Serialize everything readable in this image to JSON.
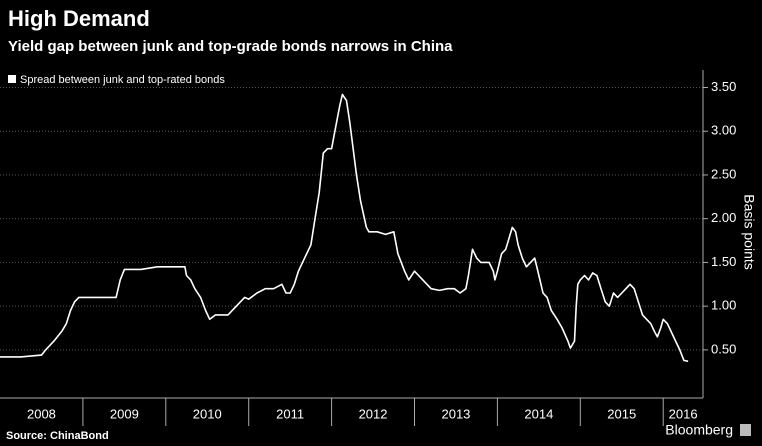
{
  "chart_data": {
    "type": "line",
    "title": "High Demand",
    "subtitle": "Yield gap between junk and top-grade bonds narrows in China",
    "y_label": "Basis points",
    "source": "Source: ChinaBond",
    "brand": "Bloomberg",
    "grid": true,
    "legend": "top-left",
    "xlim": [
      2008,
      2016.48
    ],
    "ylim": [
      -0.05,
      3.7
    ],
    "yticks": [
      {
        "value": 0.5,
        "label": "0.50"
      },
      {
        "value": 1.0,
        "label": "1.00"
      },
      {
        "value": 1.5,
        "label": "1.50"
      },
      {
        "value": 2.0,
        "label": "2.00"
      },
      {
        "value": 2.5,
        "label": "2.50"
      },
      {
        "value": 3.0,
        "label": "3.00"
      },
      {
        "value": 3.5,
        "label": "3.50"
      }
    ],
    "xticks": [
      {
        "value": 2008.5,
        "label": "2008"
      },
      {
        "value": 2009.5,
        "label": "2009"
      },
      {
        "value": 2010.5,
        "label": "2010"
      },
      {
        "value": 2011.5,
        "label": "2011"
      },
      {
        "value": 2012.5,
        "label": "2012"
      },
      {
        "value": 2013.5,
        "label": "2013"
      },
      {
        "value": 2014.5,
        "label": "2014"
      },
      {
        "value": 2015.5,
        "label": "2015"
      },
      {
        "value": 2016.24,
        "label": "2016"
      }
    ],
    "xminor_ticks": [
      2009,
      2010,
      2011,
      2012,
      2013,
      2014,
      2015,
      2016
    ],
    "x": [
      2008.0,
      2008.25,
      2008.5,
      2008.55,
      2008.65,
      2008.75,
      2008.8,
      2008.85,
      2008.9,
      2008.95,
      2009.0,
      2009.3,
      2009.4,
      2009.45,
      2009.5,
      2009.7,
      2009.9,
      2010.0,
      2010.23,
      2010.25,
      2010.3,
      2010.35,
      2010.42,
      2010.48,
      2010.53,
      2010.6,
      2010.75,
      2010.85,
      2010.95,
      2011.0,
      2011.1,
      2011.2,
      2011.3,
      2011.4,
      2011.45,
      2011.5,
      2011.55,
      2011.6,
      2011.7,
      2011.75,
      2011.8,
      2011.85,
      2011.9,
      2011.95,
      2012.0,
      2012.05,
      2012.1,
      2012.13,
      2012.18,
      2012.22,
      2012.3,
      2012.35,
      2012.42,
      2012.45,
      2012.55,
      2012.65,
      2012.75,
      2012.8,
      2012.88,
      2012.93,
      2013.0,
      2013.05,
      2013.1,
      2013.2,
      2013.3,
      2013.4,
      2013.48,
      2013.55,
      2013.62,
      2013.65,
      2013.7,
      2013.75,
      2013.8,
      2013.9,
      2013.95,
      2013.97,
      2014.0,
      2014.05,
      2014.1,
      2014.18,
      2014.22,
      2014.25,
      2014.3,
      2014.35,
      2014.4,
      2014.45,
      2014.5,
      2014.55,
      2014.6,
      2014.65,
      2014.72,
      2014.78,
      2014.85,
      2014.88,
      2014.93,
      2014.95,
      2014.97,
      2015.0,
      2015.05,
      2015.1,
      2015.15,
      2015.2,
      2015.25,
      2015.3,
      2015.35,
      2015.4,
      2015.45,
      2015.5,
      2015.55,
      2015.6,
      2015.65,
      2015.7,
      2015.75,
      2015.8,
      2015.85,
      2015.9,
      2015.93,
      2015.97,
      2016.0,
      2016.05,
      2016.1,
      2016.15,
      2016.2,
      2016.25,
      2016.3
    ],
    "series": [
      {
        "name": "Spread between junk and top-rated bonds",
        "color": "#ffffff",
        "values": [
          0.42,
          0.42,
          0.44,
          0.5,
          0.6,
          0.72,
          0.8,
          0.95,
          1.05,
          1.1,
          1.1,
          1.1,
          1.1,
          1.3,
          1.42,
          1.42,
          1.45,
          1.45,
          1.45,
          1.35,
          1.3,
          1.2,
          1.1,
          0.95,
          0.85,
          0.9,
          0.9,
          1.0,
          1.1,
          1.08,
          1.15,
          1.2,
          1.2,
          1.25,
          1.15,
          1.15,
          1.25,
          1.4,
          1.6,
          1.7,
          2.0,
          2.3,
          2.75,
          2.8,
          2.8,
          3.05,
          3.3,
          3.42,
          3.35,
          3.1,
          2.5,
          2.2,
          1.9,
          1.85,
          1.85,
          1.82,
          1.85,
          1.6,
          1.4,
          1.3,
          1.4,
          1.35,
          1.3,
          1.2,
          1.18,
          1.2,
          1.2,
          1.15,
          1.2,
          1.35,
          1.65,
          1.55,
          1.5,
          1.5,
          1.4,
          1.3,
          1.4,
          1.6,
          1.65,
          1.9,
          1.85,
          1.7,
          1.55,
          1.45,
          1.5,
          1.55,
          1.35,
          1.15,
          1.1,
          0.95,
          0.85,
          0.75,
          0.6,
          0.52,
          0.6,
          1.0,
          1.25,
          1.3,
          1.35,
          1.3,
          1.38,
          1.35,
          1.2,
          1.05,
          1.0,
          1.15,
          1.1,
          1.15,
          1.2,
          1.25,
          1.2,
          1.05,
          0.9,
          0.85,
          0.8,
          0.7,
          0.65,
          0.75,
          0.85,
          0.8,
          0.7,
          0.6,
          0.5,
          0.38,
          0.37
        ]
      }
    ]
  }
}
